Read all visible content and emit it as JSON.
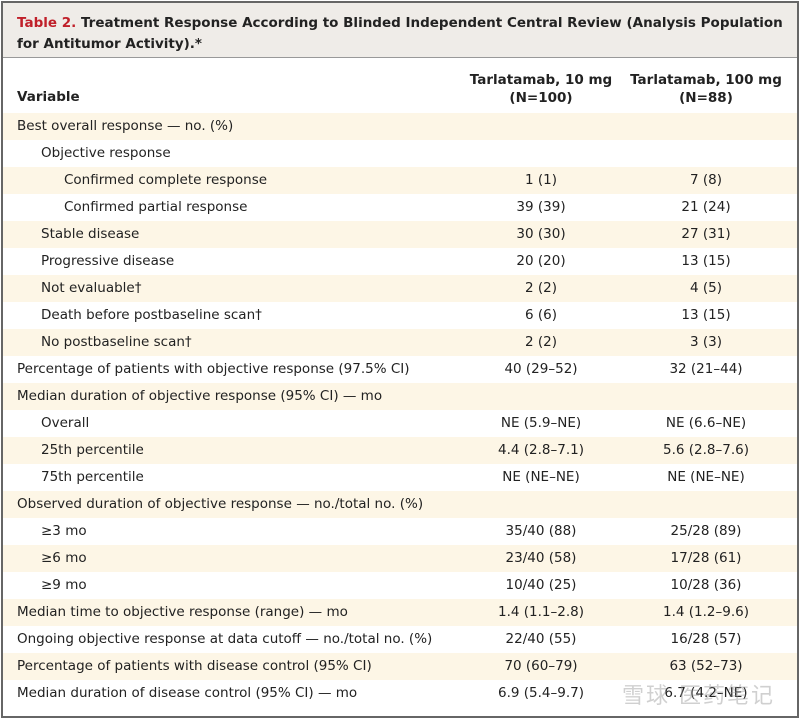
{
  "table": {
    "label": "Table 2.",
    "title": " Treatment Response According to Blinded Independent Central Review (Analysis Population for Antitumor Activity).*",
    "columns": {
      "variable": "Variable",
      "col1_line1": "Tarlatamab, 10 mg",
      "col1_line2": "(N=100)",
      "col2_line1": "Tarlatamab, 100 mg",
      "col2_line2": "(N=88)"
    },
    "rows": [
      {
        "indent": 0,
        "label": "Best overall response — no. (%)",
        "c1": "",
        "c2": ""
      },
      {
        "indent": 1,
        "label": "Objective response",
        "c1": "",
        "c2": ""
      },
      {
        "indent": 2,
        "label": "Confirmed complete response",
        "c1": "1 (1)",
        "c2": "7 (8)"
      },
      {
        "indent": 2,
        "label": "Confirmed partial response",
        "c1": "39 (39)",
        "c2": "21 (24)"
      },
      {
        "indent": 1,
        "label": "Stable disease",
        "c1": "30 (30)",
        "c2": "27 (31)"
      },
      {
        "indent": 1,
        "label": "Progressive disease",
        "c1": "20 (20)",
        "c2": "13 (15)"
      },
      {
        "indent": 1,
        "label": "Not evaluable†",
        "c1": "2 (2)",
        "c2": "4 (5)"
      },
      {
        "indent": 1,
        "label": "Death before postbaseline scan†",
        "c1": "6 (6)",
        "c2": "13 (15)"
      },
      {
        "indent": 1,
        "label": "No postbaseline scan†",
        "c1": "2 (2)",
        "c2": "3 (3)"
      },
      {
        "indent": 0,
        "label": "Percentage of patients with objective response (97.5% CI)",
        "c1": "40 (29–52)",
        "c2": "32 (21–44)"
      },
      {
        "indent": 0,
        "label": "Median duration of objective response (95% CI) — mo",
        "c1": "",
        "c2": ""
      },
      {
        "indent": 1,
        "label": "Overall",
        "c1": "NE (5.9–NE)",
        "c2": "NE (6.6–NE)"
      },
      {
        "indent": 1,
        "label": "25th percentile",
        "c1": "4.4 (2.8–7.1)",
        "c2": "5.6 (2.8–7.6)"
      },
      {
        "indent": 1,
        "label": "75th percentile",
        "c1": "NE (NE–NE)",
        "c2": "NE (NE–NE)"
      },
      {
        "indent": 0,
        "label": "Observed duration of objective response — no./total no. (%)",
        "c1": "",
        "c2": ""
      },
      {
        "indent": 1,
        "label": "≥3 mo",
        "c1": "35/40 (88)",
        "c2": "25/28 (89)"
      },
      {
        "indent": 1,
        "label": "≥6 mo",
        "c1": "23/40 (58)",
        "c2": "17/28 (61)"
      },
      {
        "indent": 1,
        "label": "≥9 mo",
        "c1": "10/40 (25)",
        "c2": "10/28 (36)"
      },
      {
        "indent": 0,
        "label": "Median time to objective response (range) — mo",
        "c1": "1.4 (1.1–2.8)",
        "c2": "1.4 (1.2–9.6)"
      },
      {
        "indent": 0,
        "label": "Ongoing objective response at data cutoff — no./total no. (%)",
        "c1": "22/40 (55)",
        "c2": "16/28 (57)"
      },
      {
        "indent": 0,
        "label": "Percentage of patients with disease control (95% CI)",
        "c1": "70 (60–79)",
        "c2": "63 (52–73)"
      },
      {
        "indent": 0,
        "label": "Median duration of disease control (95% CI) — mo",
        "c1": "6.9 (5.4–9.7)",
        "c2": "6.7 (4.2–NE)"
      }
    ]
  },
  "watermark": "雪球 医药笔记"
}
